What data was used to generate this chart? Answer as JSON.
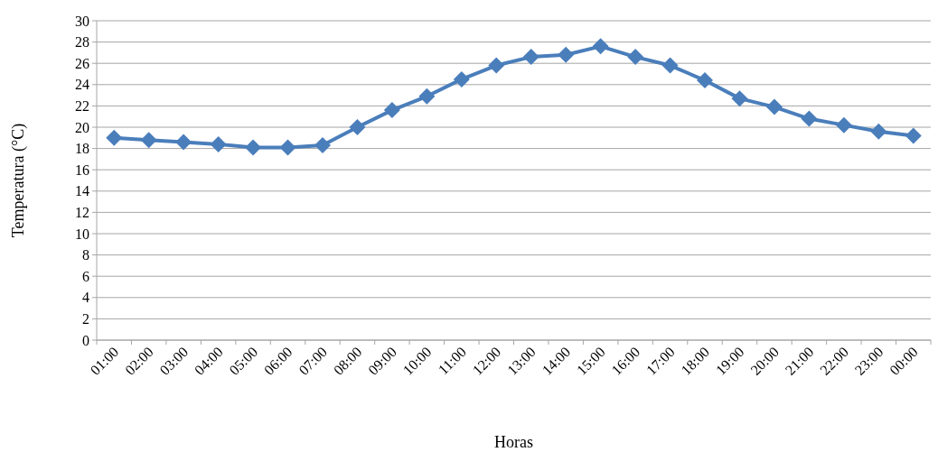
{
  "chart_data": {
    "type": "line",
    "xlabel": "Horas",
    "ylabel": "Temperatura (°C)",
    "categories": [
      "01:00",
      "02:00",
      "03:00",
      "04:00",
      "05:00",
      "06:00",
      "07:00",
      "08:00",
      "09:00",
      "10:00",
      "11:00",
      "12:00",
      "13:00",
      "14:00",
      "15:00",
      "16:00",
      "17:00",
      "18:00",
      "19:00",
      "20:00",
      "21:00",
      "22:00",
      "23:00",
      "00:00"
    ],
    "series": [
      {
        "color": "#4a7ebb",
        "values": [
          19.0,
          18.8,
          18.6,
          18.4,
          18.1,
          18.1,
          18.3,
          20.0,
          21.6,
          22.9,
          24.5,
          25.8,
          26.6,
          26.8,
          27.6,
          26.6,
          25.8,
          24.4,
          22.7,
          21.9,
          20.8,
          20.2,
          19.6,
          19.2
        ]
      }
    ],
    "ylim": [
      0,
      30
    ],
    "yticks": [
      0,
      2,
      4,
      6,
      8,
      10,
      12,
      14,
      16,
      18,
      20,
      22,
      24,
      26,
      28,
      30
    ],
    "grid": "y",
    "marker": "diamond"
  }
}
